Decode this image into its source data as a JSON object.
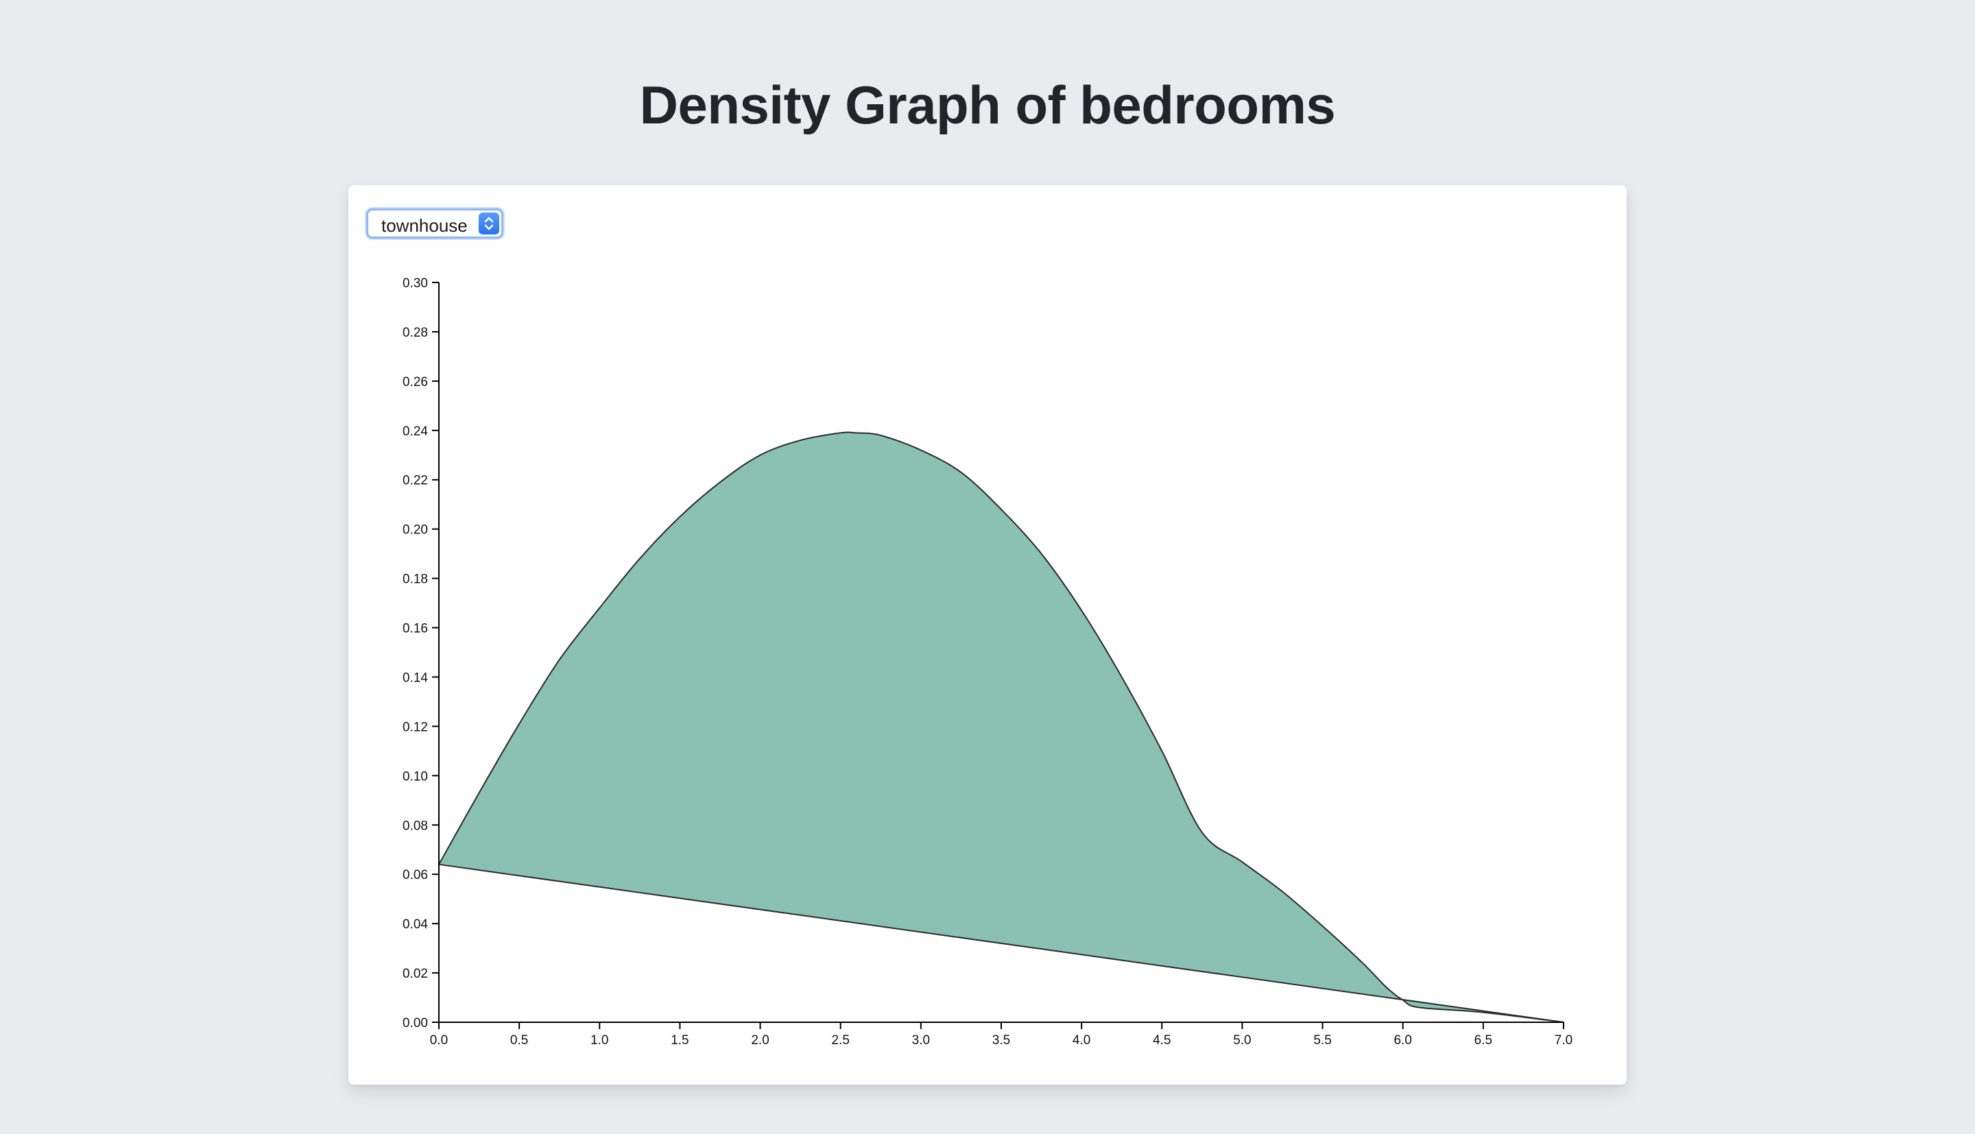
{
  "page": {
    "title": "Density Graph of bedrooms"
  },
  "selector": {
    "value": "townhouse"
  },
  "chart_data": {
    "type": "area",
    "xlim": [
      0,
      7
    ],
    "ylim": [
      0,
      0.3
    ],
    "x_ticks": [
      "0.0",
      "0.5",
      "1.0",
      "1.5",
      "2.0",
      "2.5",
      "3.0",
      "3.5",
      "4.0",
      "4.5",
      "5.0",
      "5.5",
      "6.0",
      "6.5",
      "7.0"
    ],
    "y_ticks": [
      "0.00",
      "0.02",
      "0.04",
      "0.06",
      "0.08",
      "0.10",
      "0.12",
      "0.14",
      "0.16",
      "0.18",
      "0.20",
      "0.22",
      "0.24",
      "0.26",
      "0.28",
      "0.30"
    ],
    "fill_color": "#8bc1b3",
    "stroke_color": "#2b2b2b",
    "series": [
      {
        "x": [
          0,
          0.25,
          0.5,
          0.75,
          1.0,
          1.25,
          1.5,
          1.75,
          2.0,
          2.25,
          2.5,
          2.6,
          2.75,
          3.0,
          3.25,
          3.5,
          3.75,
          4.0,
          4.25,
          4.5,
          4.75,
          5.0,
          5.25,
          5.5,
          5.75,
          5.9,
          6.0,
          6.1,
          6.5,
          7.0
        ],
        "y": [
          0.064,
          0.093,
          0.121,
          0.147,
          0.168,
          0.188,
          0.205,
          0.219,
          0.23,
          0.236,
          0.239,
          0.239,
          0.238,
          0.232,
          0.223,
          0.208,
          0.19,
          0.167,
          0.14,
          0.11,
          0.077,
          0.065,
          0.053,
          0.039,
          0.024,
          0.014,
          0.009,
          0.006,
          0.004,
          0.0
        ]
      }
    ]
  }
}
